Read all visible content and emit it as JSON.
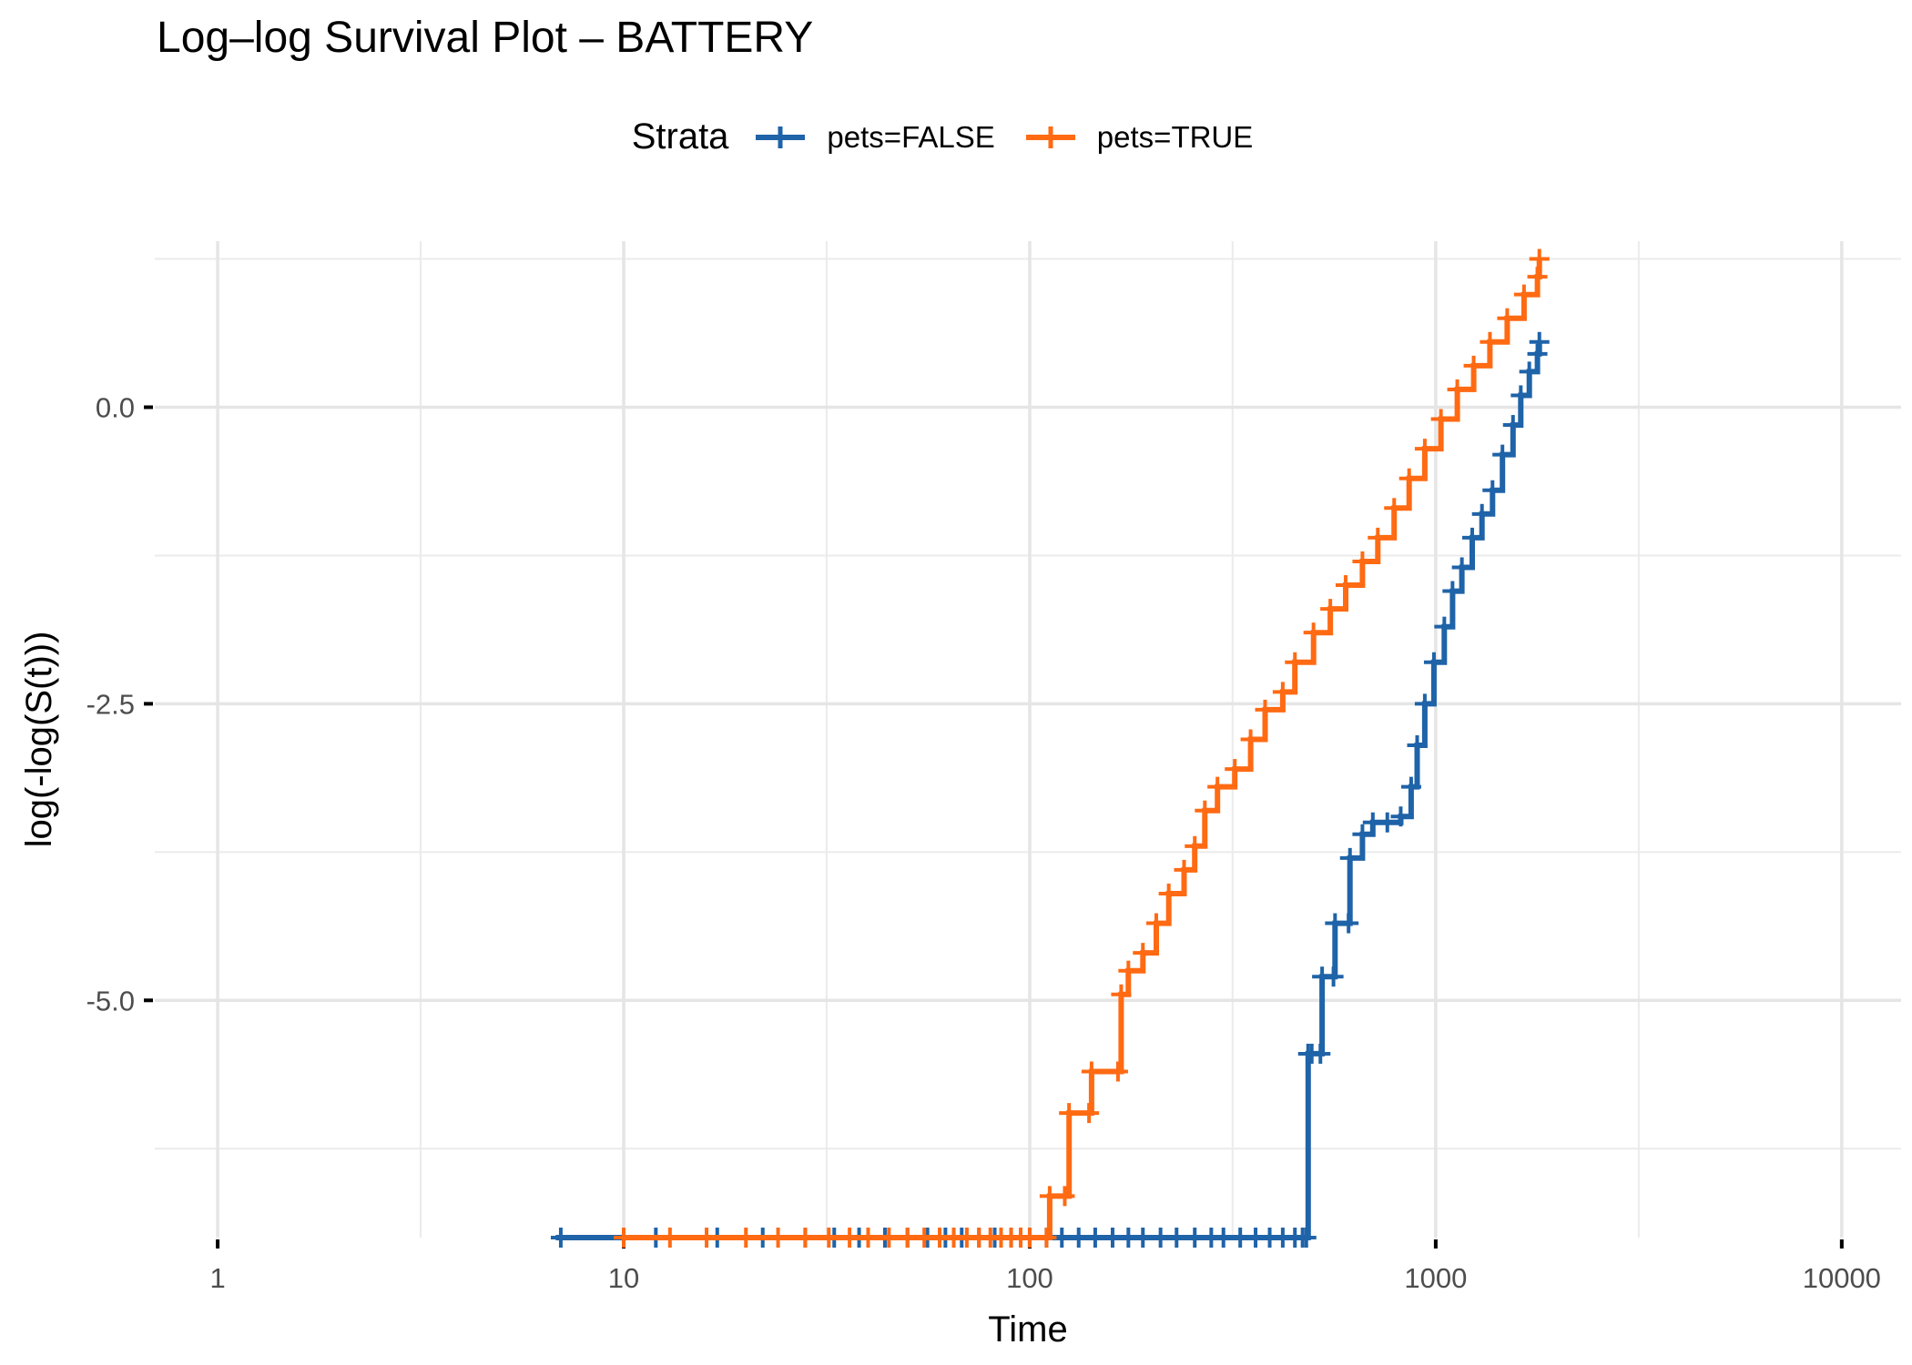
{
  "chart_data": {
    "type": "line",
    "title": "Log–log Survival Plot – BATTERY",
    "xlabel": "Time",
    "ylabel": "log(-log(S(t)))",
    "x_scale": "log10",
    "xlim": [
      0.7,
      14000
    ],
    "ylim": [
      -7,
      1.4
    ],
    "x_ticks": [
      {
        "value": 1,
        "label": "1"
      },
      {
        "value": 10,
        "label": "10"
      },
      {
        "value": 100,
        "label": "100"
      },
      {
        "value": 1000,
        "label": "1000"
      },
      {
        "value": 10000,
        "label": "10000"
      }
    ],
    "y_ticks": [
      {
        "value": 0,
        "label": "0.0"
      },
      {
        "value": -2.5,
        "label": "-2.5"
      },
      {
        "value": -5,
        "label": "-5.0"
      }
    ],
    "y_minor_gridlines": [
      1.25,
      -1.25,
      -3.75,
      -6.25
    ],
    "x_minor_gridlines": [
      3.16,
      31.6,
      316,
      3162
    ],
    "grid": true,
    "legend": {
      "title": "Strata",
      "position": "top"
    },
    "censor_marks": true,
    "series": [
      {
        "name": "pets=FALSE",
        "color": "#1f63a8",
        "points": [
          [
            6.8,
            -7
          ],
          [
            480,
            -7
          ],
          [
            485,
            -5.45
          ],
          [
            520,
            -5.45
          ],
          [
            525,
            -4.8
          ],
          [
            560,
            -4.8
          ],
          [
            565,
            -4.35
          ],
          [
            610,
            -4.35
          ],
          [
            615,
            -3.8
          ],
          [
            660,
            -3.6
          ],
          [
            700,
            -3.5
          ],
          [
            760,
            -3.5
          ],
          [
            820,
            -3.45
          ],
          [
            870,
            -3.2
          ],
          [
            900,
            -2.85
          ],
          [
            940,
            -2.5
          ],
          [
            990,
            -2.15
          ],
          [
            1050,
            -1.85
          ],
          [
            1100,
            -1.55
          ],
          [
            1160,
            -1.35
          ],
          [
            1230,
            -1.1
          ],
          [
            1300,
            -0.9
          ],
          [
            1380,
            -0.7
          ],
          [
            1460,
            -0.4
          ],
          [
            1550,
            -0.15
          ],
          [
            1620,
            0.1
          ],
          [
            1700,
            0.3
          ],
          [
            1780,
            0.45
          ],
          [
            1800,
            0.55
          ]
        ],
        "censor_times": [
          7,
          12,
          17,
          22,
          28,
          33,
          38,
          44,
          50,
          56,
          62,
          68,
          75,
          82,
          90,
          100,
          110,
          120,
          132,
          145,
          160,
          175,
          190,
          210,
          230,
          255,
          280,
          300,
          330,
          360,
          390,
          420,
          450,
          470,
          495
        ]
      },
      {
        "name": "pets=TRUE",
        "color": "#ff6a13",
        "points": [
          [
            10,
            -7
          ],
          [
            110,
            -7
          ],
          [
            112,
            -6.65
          ],
          [
            122,
            -6.65
          ],
          [
            125,
            -5.95
          ],
          [
            140,
            -5.95
          ],
          [
            142,
            -5.6
          ],
          [
            165,
            -5.6
          ],
          [
            168,
            -4.95
          ],
          [
            175,
            -4.75
          ],
          [
            190,
            -4.6
          ],
          [
            205,
            -4.35
          ],
          [
            220,
            -4.1
          ],
          [
            240,
            -3.9
          ],
          [
            255,
            -3.7
          ],
          [
            270,
            -3.4
          ],
          [
            290,
            -3.2
          ],
          [
            320,
            -3.05
          ],
          [
            350,
            -2.8
          ],
          [
            380,
            -2.55
          ],
          [
            420,
            -2.4
          ],
          [
            450,
            -2.15
          ],
          [
            500,
            -1.9
          ],
          [
            550,
            -1.7
          ],
          [
            600,
            -1.5
          ],
          [
            660,
            -1.3
          ],
          [
            720,
            -1.1
          ],
          [
            790,
            -0.85
          ],
          [
            860,
            -0.6
          ],
          [
            940,
            -0.35
          ],
          [
            1030,
            -0.1
          ],
          [
            1130,
            0.15
          ],
          [
            1240,
            0.35
          ],
          [
            1360,
            0.55
          ],
          [
            1500,
            0.75
          ],
          [
            1650,
            0.95
          ],
          [
            1780,
            1.1
          ],
          [
            1800,
            1.25
          ]
        ],
        "censor_times": [
          10,
          13,
          16,
          20,
          24,
          28,
          32,
          36,
          40,
          45,
          50,
          55,
          60,
          65,
          70,
          75,
          80,
          85,
          90,
          95,
          100
        ]
      }
    ]
  }
}
